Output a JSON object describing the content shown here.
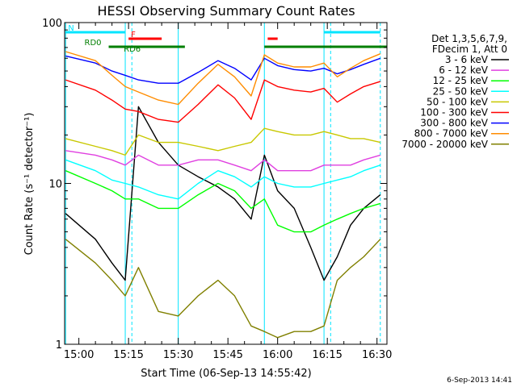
{
  "chart_data": {
    "type": "line",
    "title": "HESSI Observing Summary Count Rates",
    "xlabel": "Start Time (06-Sep-13 14:55:42)",
    "ylabel": "Count Rate (s⁻¹ detector⁻¹)",
    "y_scale": "log",
    "ylim": [
      1,
      100
    ],
    "xlim": [
      "14:55:42",
      "16:33:00"
    ],
    "x_ticks": [
      "15:00",
      "15:15",
      "15:30",
      "15:45",
      "16:00",
      "16:15",
      "16:30"
    ],
    "y_ticks": [
      "1",
      "10",
      "100"
    ],
    "grid": false,
    "legend_position": "right",
    "legend_header": [
      "Det 1,3,5,6,7,9,",
      "FDecim 1, Att 0"
    ],
    "date_stamp": "6-Sep-2013 14:41",
    "flags": [
      {
        "label": "N",
        "color": "#00e5ff",
        "intervals": [
          [
            "14:56",
            "15:14"
          ],
          [
            "16:14",
            "16:31"
          ]
        ]
      },
      {
        "label": "F",
        "color": "#ff0000",
        "intervals": [
          [
            "15:15",
            "15:25"
          ],
          [
            "15:57",
            "16:00"
          ]
        ]
      },
      {
        "label": "RD0",
        "color": "#007f00",
        "intervals": [
          [
            "15:09",
            "15:32"
          ],
          [
            "15:56",
            "16:33"
          ]
        ]
      },
      {
        "label": "RD6",
        "color": "#007f00",
        "intervals": []
      }
    ],
    "boundaries": [
      {
        "time": "14:56",
        "color": "#00e5ff",
        "style": "solid"
      },
      {
        "time": "15:14",
        "color": "#00e5ff",
        "style": "solid"
      },
      {
        "time": "15:16",
        "color": "#00e5ff",
        "style": "dashed"
      },
      {
        "time": "15:30",
        "color": "#00e5ff",
        "style": "solid"
      },
      {
        "time": "15:56",
        "color": "#00e5ff",
        "style": "solid"
      },
      {
        "time": "16:14",
        "color": "#00e5ff",
        "style": "solid"
      },
      {
        "time": "16:16",
        "color": "#00e5ff",
        "style": "dashed"
      },
      {
        "time": "16:31",
        "color": "#00e5ff",
        "style": "dashed"
      }
    ],
    "x": [
      "14:56",
      "15:05",
      "15:10",
      "15:14",
      "15:18",
      "15:24",
      "15:30",
      "15:36",
      "15:42",
      "15:47",
      "15:52",
      "15:56",
      "16:00",
      "16:05",
      "16:10",
      "16:14",
      "16:18",
      "16:22",
      "16:26",
      "16:31"
    ],
    "series": [
      {
        "name": "3 - 6 keV",
        "color": "#000000",
        "values": [
          6.5,
          4.5,
          3.2,
          2.5,
          30,
          18,
          13,
          11,
          9.5,
          8,
          6,
          15,
          9,
          7,
          4,
          2.5,
          3.5,
          5.5,
          7,
          8.5
        ]
      },
      {
        "name": "6 - 12 keV",
        "color": "#e040e0",
        "values": [
          16,
          15,
          14,
          13,
          15,
          13,
          13,
          14,
          14,
          13,
          12,
          14,
          12,
          12,
          12,
          13,
          13,
          13,
          14,
          15
        ]
      },
      {
        "name": "12 - 25 keV",
        "color": "#00ff00",
        "values": [
          12,
          10,
          9,
          8,
          8,
          7,
          7,
          8.5,
          10,
          9,
          7,
          8,
          5.5,
          5,
          5,
          5.5,
          6,
          6.5,
          7,
          7.5
        ]
      },
      {
        "name": "25 - 50 keV",
        "color": "#00ffff",
        "values": [
          14,
          12,
          10.5,
          10,
          9.5,
          8.5,
          8,
          10,
          12,
          11,
          9.5,
          11,
          10,
          9.5,
          9.5,
          10,
          10.5,
          11,
          12,
          13
        ]
      },
      {
        "name": "50 - 100 keV",
        "color": "#c8c800",
        "values": [
          19,
          17,
          16,
          15,
          20,
          18,
          18,
          17,
          16,
          17,
          18,
          22,
          21,
          20,
          20,
          21,
          20,
          19,
          19,
          18
        ]
      },
      {
        "name": "100 - 300 keV",
        "color": "#ff0000",
        "values": [
          44,
          38,
          33,
          29,
          28,
          25,
          24,
          31,
          41,
          34,
          25,
          44,
          40,
          38,
          37,
          39,
          32,
          36,
          40,
          43
        ]
      },
      {
        "name": "300 - 800 keV",
        "color": "#0000ff",
        "values": [
          62,
          56,
          50,
          47,
          44,
          42,
          42,
          49,
          58,
          52,
          44,
          60,
          54,
          51,
          50,
          52,
          48,
          51,
          55,
          60
        ]
      },
      {
        "name": "800 - 7000 keV",
        "color": "#ff8c00",
        "values": [
          66,
          58,
          47,
          40,
          37,
          33,
          31,
          42,
          55,
          46,
          35,
          63,
          56,
          53,
          53,
          56,
          46,
          52,
          58,
          64
        ]
      },
      {
        "name": "7000 - 20000 keV",
        "color": "#808000",
        "values": [
          4.5,
          3.2,
          2.5,
          2,
          3,
          1.6,
          1.5,
          2,
          2.5,
          2,
          1.3,
          1.2,
          1.1,
          1.2,
          1.2,
          1.3,
          2.5,
          3,
          3.5,
          4.5
        ]
      }
    ]
  }
}
